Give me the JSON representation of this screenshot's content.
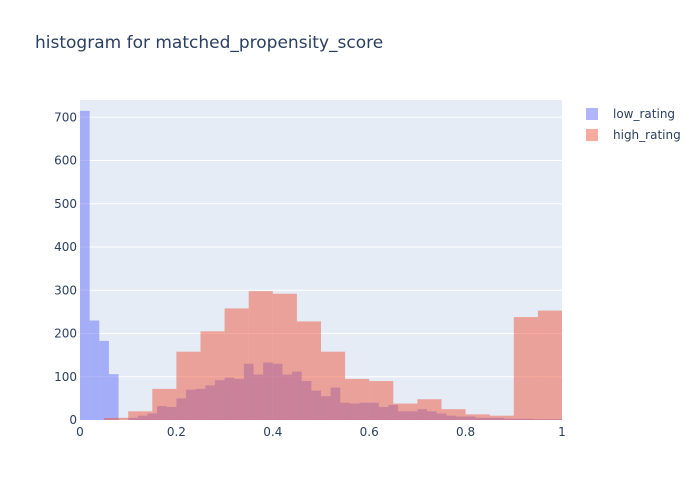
{
  "chart_data": {
    "type": "bar",
    "title": "histogram for matched_propensity_score",
    "xlabel": "",
    "ylabel": "",
    "xlim": [
      0,
      1
    ],
    "ylim": [
      0,
      740
    ],
    "barmode": "overlay",
    "grid": true,
    "legend_position": "top-right",
    "x_ticks": [
      0,
      0.2,
      0.4,
      0.6,
      0.8,
      1
    ],
    "x_tick_labels": [
      "0",
      "0.2",
      "0.4",
      "0.6",
      "0.8",
      "1"
    ],
    "y_ticks": [
      0,
      100,
      200,
      300,
      400,
      500,
      600,
      700
    ],
    "y_tick_labels": [
      "0",
      "100",
      "200",
      "300",
      "400",
      "500",
      "600",
      "700"
    ],
    "series": [
      {
        "name": "low_rating",
        "color": "#636efa",
        "bin_width": 0.02,
        "x": [
          0.0,
          0.02,
          0.04,
          0.06,
          0.08,
          0.1,
          0.12,
          0.14,
          0.16,
          0.18,
          0.2,
          0.22,
          0.24,
          0.26,
          0.28,
          0.3,
          0.32,
          0.34,
          0.36,
          0.38,
          0.4,
          0.42,
          0.44,
          0.46,
          0.48,
          0.5,
          0.52,
          0.54,
          0.56,
          0.58,
          0.6,
          0.62,
          0.64,
          0.66,
          0.68,
          0.7,
          0.72,
          0.74,
          0.76,
          0.78,
          0.8,
          0.82,
          0.84,
          0.86,
          0.88,
          0.9,
          0.92,
          0.94,
          0.96,
          0.98
        ],
        "values": [
          715,
          230,
          183,
          106,
          0,
          5,
          10,
          15,
          32,
          30,
          50,
          70,
          72,
          80,
          92,
          98,
          95,
          130,
          105,
          133,
          130,
          105,
          112,
          90,
          68,
          55,
          75,
          40,
          38,
          40,
          40,
          30,
          35,
          20,
          20,
          25,
          20,
          15,
          10,
          8,
          8,
          5,
          5,
          5,
          3,
          3,
          3,
          2,
          2,
          2
        ]
      },
      {
        "name": "high_rating",
        "color": "#ef553b",
        "bin_width": 0.05,
        "x": [
          0.0,
          0.05,
          0.1,
          0.15,
          0.2,
          0.25,
          0.3,
          0.35,
          0.4,
          0.45,
          0.5,
          0.55,
          0.6,
          0.65,
          0.7,
          0.75,
          0.8,
          0.85,
          0.9,
          0.95
        ],
        "values": [
          0,
          5,
          20,
          72,
          158,
          205,
          258,
          298,
          292,
          228,
          158,
          95,
          90,
          38,
          48,
          25,
          13,
          10,
          238,
          253
        ]
      }
    ]
  }
}
